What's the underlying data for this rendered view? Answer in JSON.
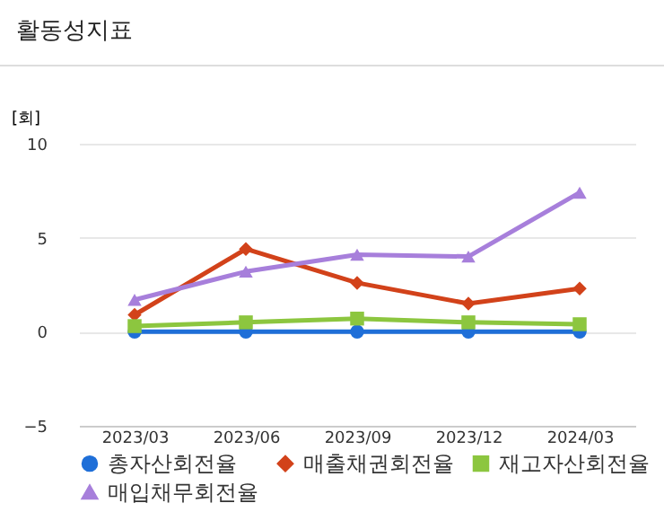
{
  "chart_data": {
    "type": "line",
    "title": "활동성지표",
    "ylabel": "[회]",
    "categories": [
      "2023/03",
      "2023/06",
      "2023/09",
      "2023/12",
      "2024/03"
    ],
    "series": [
      {
        "name": "총자산회전율",
        "color": "#1f6fd8",
        "marker": "circle",
        "values": [
          0,
          0,
          0,
          0,
          0
        ]
      },
      {
        "name": "매출채권회전율",
        "color": "#d2421a",
        "marker": "diamond",
        "values": [
          0.9,
          4.4,
          2.6,
          1.5,
          2.3
        ]
      },
      {
        "name": "재고자산회전율",
        "color": "#8cc63f",
        "marker": "square",
        "values": [
          0.3,
          0.5,
          0.7,
          0.5,
          0.4
        ]
      },
      {
        "name": "매입채무회전율",
        "color": "#a77fdb",
        "marker": "triangle",
        "values": [
          1.7,
          3.2,
          4.1,
          4.0,
          7.4
        ]
      }
    ],
    "ylim": [
      -5,
      10
    ],
    "yticks": [
      -5,
      0,
      5,
      10
    ],
    "grid": "y",
    "legend": "bottom"
  }
}
